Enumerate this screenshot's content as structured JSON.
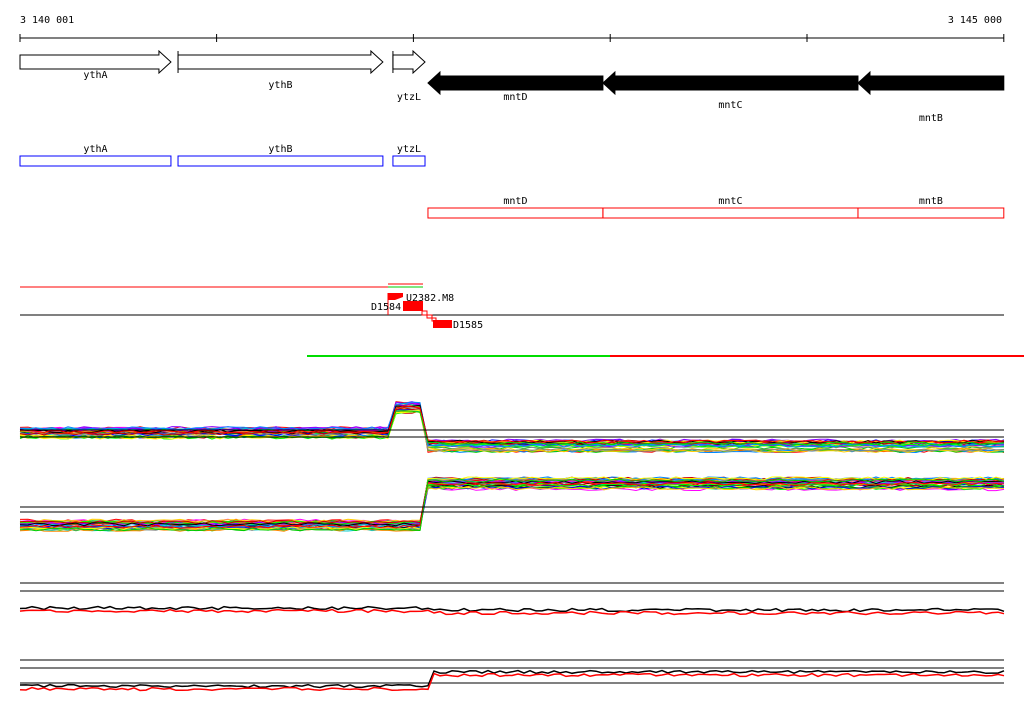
{
  "ruler": {
    "start_label": "3 140 001",
    "end_label": "3 145 000",
    "start": 3140001,
    "end": 3145000,
    "tick_step": 1000
  },
  "genes": [
    {
      "name": "ythA",
      "start": 3140001,
      "end": 3140768,
      "strand": "+"
    },
    {
      "name": "ythB",
      "start": 3140804,
      "end": 3141845,
      "strand": "+"
    },
    {
      "name": "ytzL",
      "start": 3141896,
      "end": 3142059,
      "strand": "+"
    },
    {
      "name": "mntD",
      "start": 3142074,
      "end": 3142963,
      "strand": "-"
    },
    {
      "name": "mntC",
      "start": 3142963,
      "end": 3144259,
      "strand": "-"
    },
    {
      "name": "mntB",
      "start": 3144259,
      "end": 3145000,
      "strand": "-"
    }
  ],
  "features": [
    {
      "label": "D1584"
    },
    {
      "label": "U2382.M8"
    },
    {
      "label": "D1585"
    }
  ],
  "colors": {
    "plus_box": "#0000ff",
    "minus_box": "#ff0000",
    "feature": "#ff0000",
    "green": "#00dd00"
  }
}
